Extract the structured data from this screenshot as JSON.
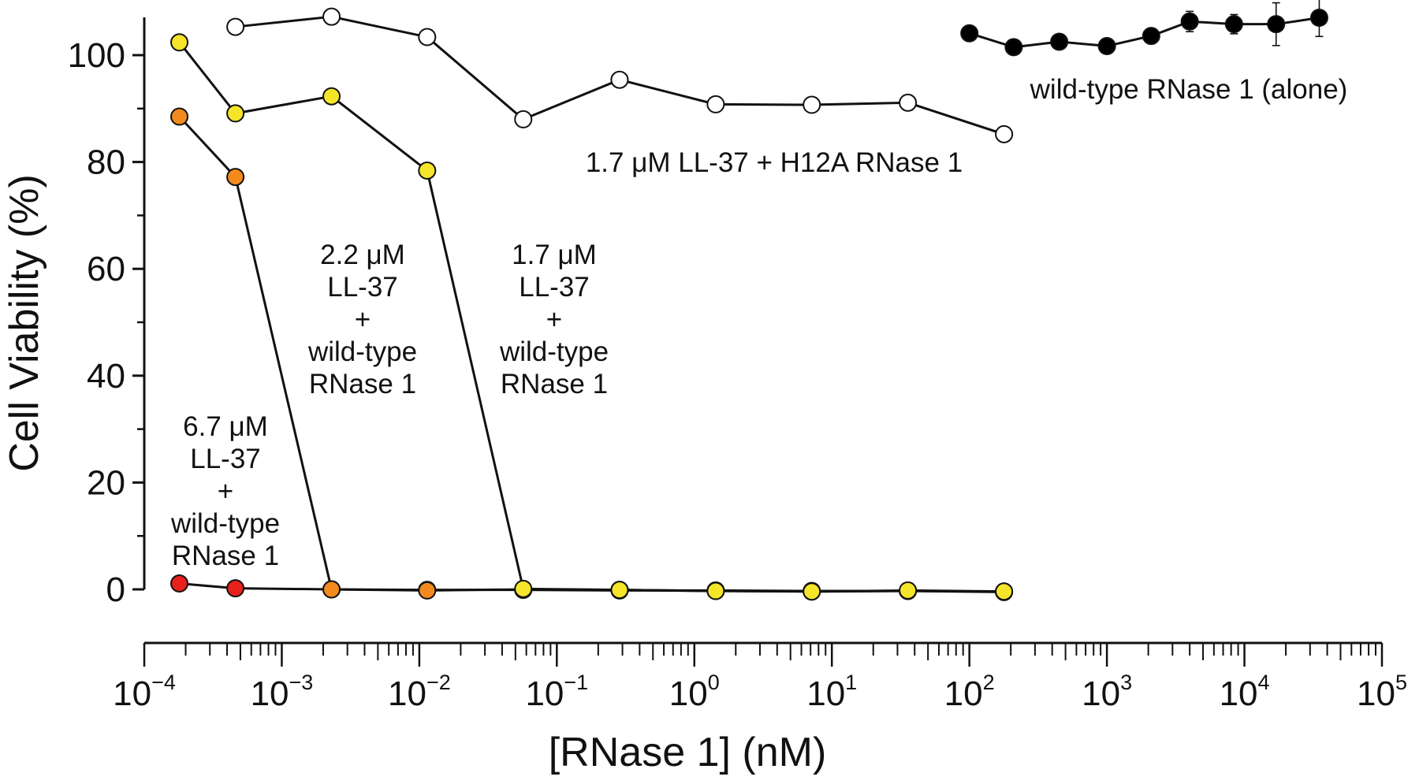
{
  "chart_data": {
    "type": "line",
    "title": "",
    "xlabel": "[RNase 1] (nM)",
    "ylabel": "Cell Viability (%)",
    "x_scale": "log",
    "xlim": [
      0.0001,
      100000
    ],
    "ylim": [
      0,
      105
    ],
    "x_ticks": [
      {
        "base": "10",
        "exp": "−4"
      },
      {
        "base": "10",
        "exp": "−3"
      },
      {
        "base": "10",
        "exp": "−2"
      },
      {
        "base": "10",
        "exp": "−1"
      },
      {
        "base": "10",
        "exp": "0"
      },
      {
        "base": "10",
        "exp": "1"
      },
      {
        "base": "10",
        "exp": "2"
      },
      {
        "base": "10",
        "exp": "3"
      },
      {
        "base": "10",
        "exp": "4"
      },
      {
        "base": "10",
        "exp": "5"
      }
    ],
    "y_ticks": [
      "0",
      "20",
      "40",
      "60",
      "80",
      "100"
    ],
    "grid": false,
    "series": [
      {
        "id": "h12a",
        "color": "#ffffff",
        "x": [
          0.00046,
          0.0023,
          0.0114,
          0.057,
          0.286,
          1.43,
          7.14,
          35.7,
          178.6
        ],
        "y": [
          105.3,
          107.2,
          103.4,
          88.0,
          95.4,
          90.8,
          90.7,
          91.1,
          85.2
        ],
        "label_lines": [
          "1.7 μM LL-37 + H12A RNase 1"
        ]
      },
      {
        "id": "wt-alone",
        "color": "#000000",
        "x": [
          100,
          210,
          450,
          1000,
          2100,
          4000,
          8400,
          17000,
          35000
        ],
        "y": [
          104.1,
          101.5,
          102.5,
          101.7,
          103.6,
          106.3,
          105.8,
          105.8,
          107.0
        ],
        "err": [
          0,
          0,
          0,
          0,
          0,
          1.9,
          1.8,
          4.0,
          3.5
        ],
        "label_lines": [
          "wild-type RNase 1 (alone)"
        ]
      },
      {
        "id": "ll37-1.7",
        "color": "#f5e52a",
        "x": [
          0.00018,
          0.00046,
          0.0023,
          0.0114,
          0.057,
          0.286,
          1.43,
          7.14,
          35.7,
          178.6
        ],
        "y": [
          102.4,
          89.1,
          92.3,
          78.4,
          0.1,
          -0.1,
          -0.3,
          -0.4,
          -0.2,
          -0.4
        ],
        "label_lines": [
          "1.7 μM",
          "LL-37",
          "+",
          "wild-type",
          "RNase 1"
        ]
      },
      {
        "id": "ll37-2.2",
        "color": "#f28a1e",
        "x": [
          0.00018,
          0.00046,
          0.0023,
          0.0114,
          0.057,
          0.286,
          1.43,
          7.14,
          35.7,
          178.6
        ],
        "y": [
          88.5,
          77.2,
          0.0,
          -0.2,
          0.0,
          -0.1,
          -0.3,
          -0.4,
          -0.3,
          -0.5
        ],
        "label_lines": [
          "2.2 μM",
          "LL-37",
          "+",
          "wild-type",
          "RNase 1"
        ]
      },
      {
        "id": "ll37-6.7",
        "color": "#e8211c",
        "x": [
          0.00018,
          0.00046,
          0.0023,
          0.0114,
          0.057,
          0.286,
          1.43,
          7.14,
          35.7,
          178.6
        ],
        "y": [
          1.1,
          0.2,
          0.0,
          -0.1,
          -0.1,
          -0.2,
          -0.2,
          -0.3,
          -0.3,
          -0.4
        ],
        "label_lines": [
          "6.7 μM",
          "LL-37",
          "+",
          "wild-type",
          "RNase 1"
        ]
      }
    ]
  }
}
